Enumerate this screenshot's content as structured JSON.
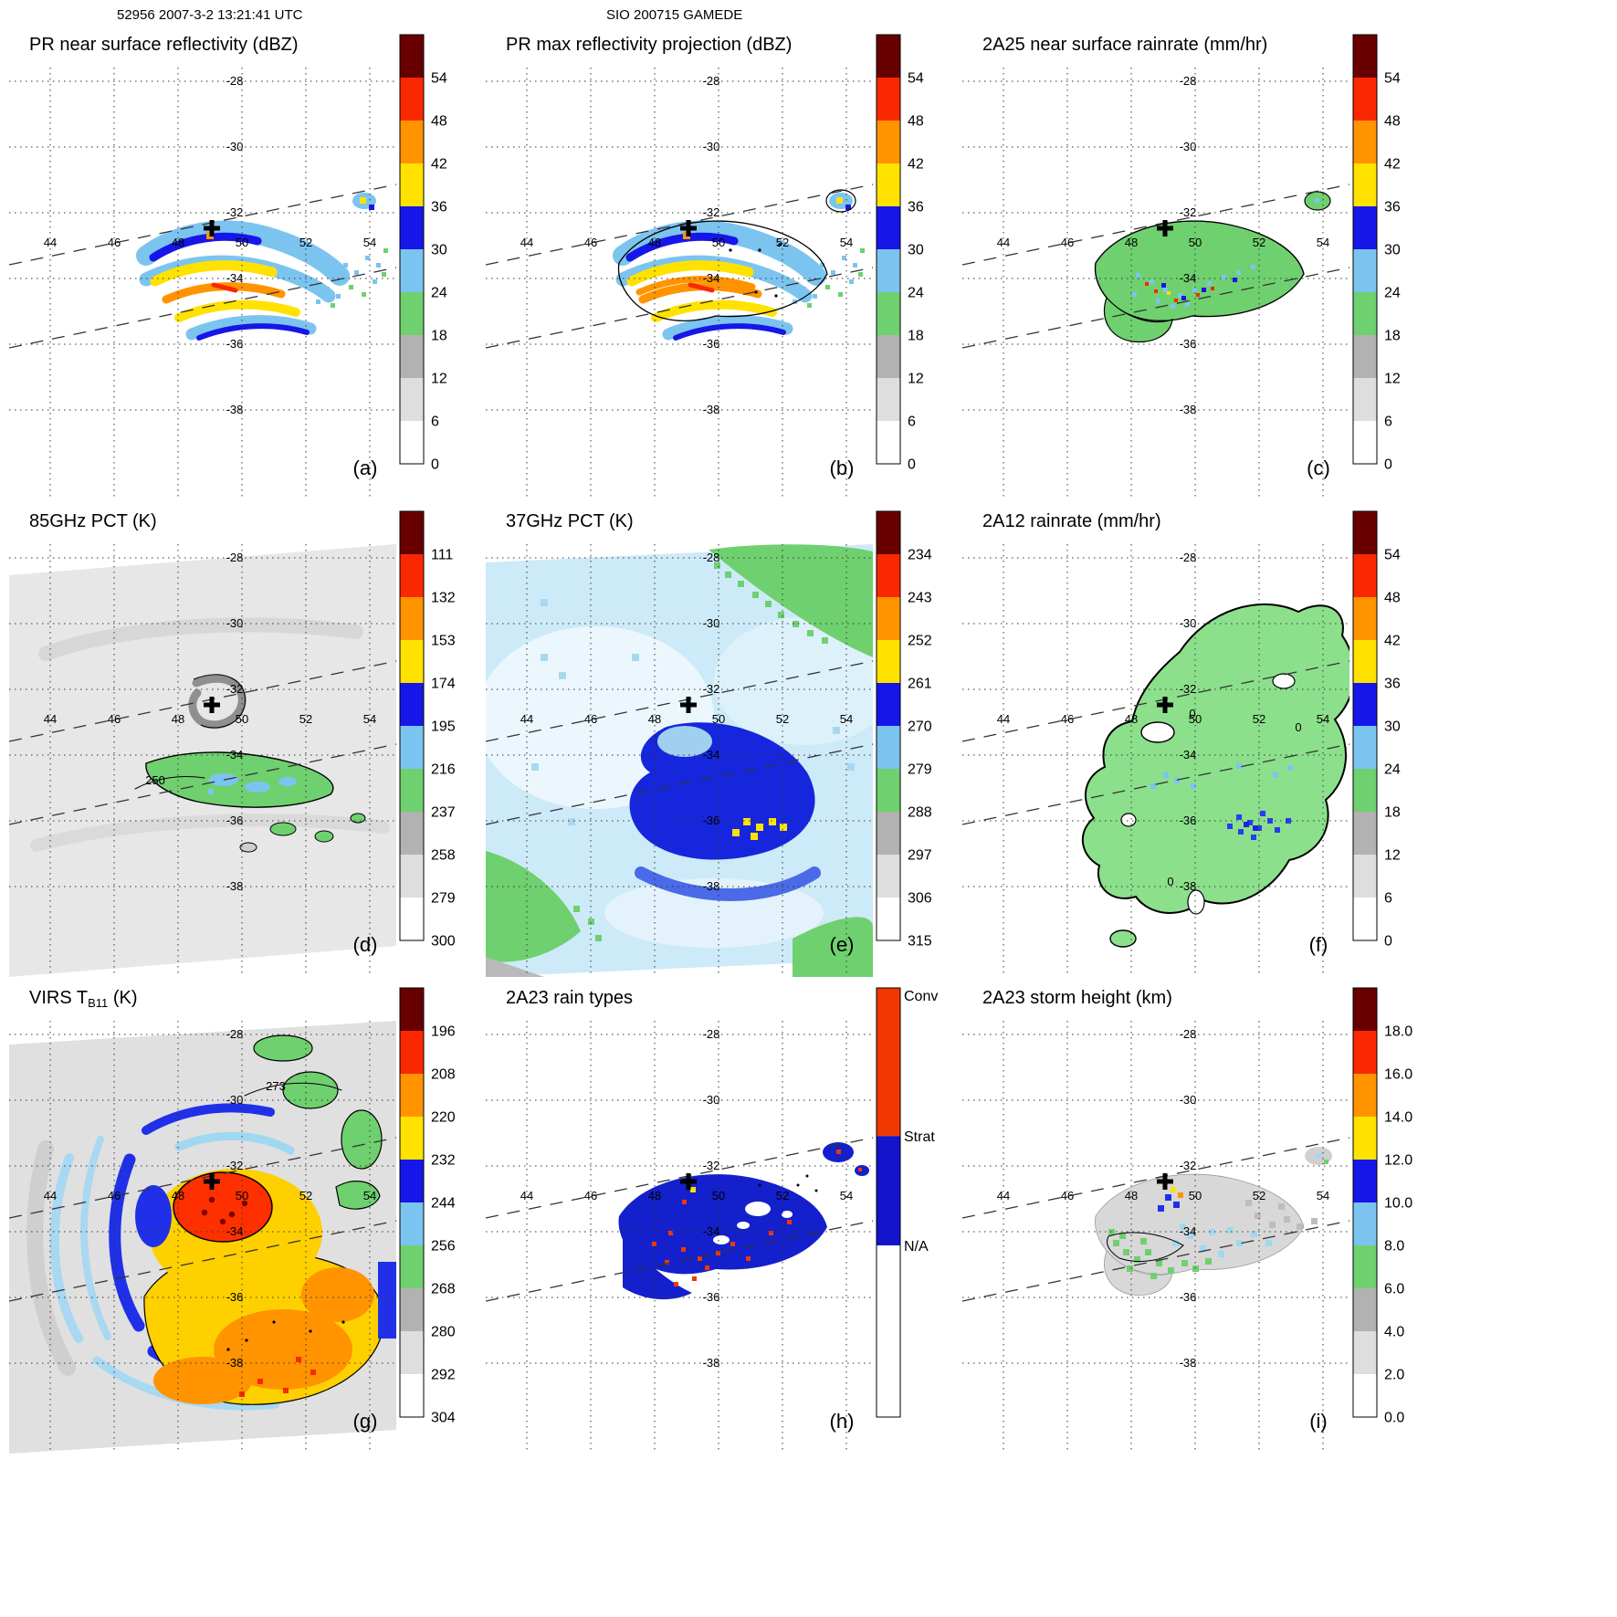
{
  "header": {
    "left": "52956 2007-3-2 13:21:41 UTC",
    "center": "SIO 200715 GAMEDE"
  },
  "geo": {
    "lon_labels": [
      "44",
      "46",
      "48",
      "50",
      "52",
      "54"
    ],
    "lat_labels": [
      "-28",
      "-30",
      "-32",
      "-34",
      "-36",
      "-38"
    ]
  },
  "palette": {
    "bar_colors": [
      "#ffffff",
      "#dedede",
      "#b2b2b2",
      "#6fd06f",
      "#7cc4f0",
      "#1616e8",
      "#ffe200",
      "#ff9400",
      "#fa2800",
      "#680000"
    ],
    "green": "#6fd06f",
    "green_bright": "#8ce08c",
    "lblue": "#7cc4f0",
    "blue": "#1616e8",
    "deep_blue": "#1420cc",
    "yellow": "#ffe200",
    "gold": "#ffd000",
    "orange": "#ff9400",
    "red": "#fa2800",
    "maroon": "#680000",
    "raintype_conv": "#f03800",
    "raintype_strat": "#1414cc",
    "swath_bg_gray": "#e7e7e7",
    "pct37_bg": "#cdeaf8"
  },
  "panels": [
    {
      "id": "a",
      "letter": "(a)",
      "title_pre": "PR near surface reflectivity (dBZ)",
      "title_sub": "",
      "title_post": "",
      "art": "a",
      "colorbar": {
        "type": "standard",
        "ticks": [
          "0",
          "6",
          "12",
          "18",
          "24",
          "30",
          "36",
          "42",
          "48",
          "54"
        ]
      },
      "notes": []
    },
    {
      "id": "b",
      "letter": "(b)",
      "title_pre": "PR max reflectivity projection (dBZ)",
      "title_sub": "",
      "title_post": "",
      "art": "b",
      "colorbar": {
        "type": "standard",
        "ticks": [
          "0",
          "6",
          "12",
          "18",
          "24",
          "30",
          "36",
          "42",
          "48",
          "54"
        ]
      },
      "notes": []
    },
    {
      "id": "c",
      "letter": "(c)",
      "title_pre": "2A25 near surface rainrate (mm/hr)",
      "title_sub": "",
      "title_post": "",
      "art": "c",
      "colorbar": {
        "type": "standard",
        "ticks": [
          "0",
          "6",
          "12",
          "18",
          "24",
          "30",
          "36",
          "42",
          "48",
          "54"
        ]
      },
      "notes": []
    },
    {
      "id": "d",
      "letter": "(d)",
      "title_pre": "85GHz PCT (K)",
      "title_sub": "",
      "title_post": "",
      "art": "d",
      "colorbar": {
        "type": "standard",
        "ticks": [
          "300",
          "279",
          "258",
          "237",
          "216",
          "195",
          "174",
          "153",
          "132",
          "111"
        ]
      },
      "notes": [
        "250"
      ]
    },
    {
      "id": "e",
      "letter": "(e)",
      "title_pre": "37GHz PCT (K)",
      "title_sub": "",
      "title_post": "",
      "art": "e",
      "colorbar": {
        "type": "standard",
        "ticks": [
          "315",
          "306",
          "297",
          "288",
          "279",
          "270",
          "261",
          "252",
          "243",
          "234"
        ]
      },
      "notes": []
    },
    {
      "id": "f",
      "letter": "(f)",
      "title_pre": "2A12 rainrate (mm/hr)",
      "title_sub": "",
      "title_post": "",
      "art": "f",
      "colorbar": {
        "type": "standard",
        "ticks": [
          "0",
          "6",
          "12",
          "18",
          "24",
          "30",
          "36",
          "42",
          "48",
          "54"
        ]
      },
      "notes": [
        "0",
        "0",
        "0"
      ]
    },
    {
      "id": "g",
      "letter": "(g)",
      "title_pre": "VIRS T",
      "title_sub": "B11",
      "title_post": " (K)",
      "art": "g",
      "colorbar": {
        "type": "standard",
        "ticks": [
          "304",
          "292",
          "280",
          "268",
          "256",
          "244",
          "232",
          "220",
          "208",
          "196"
        ]
      },
      "notes": [
        "273"
      ]
    },
    {
      "id": "h",
      "letter": "(h)",
      "title_pre": "2A23 rain types",
      "title_sub": "",
      "title_post": "",
      "art": "h",
      "colorbar": {
        "type": "raintypes",
        "labels": [
          "Conv",
          "Strat",
          "N/A"
        ]
      },
      "notes": []
    },
    {
      "id": "i",
      "letter": "(i)",
      "title_pre": "2A23 storm height (km)",
      "title_sub": "",
      "title_post": "",
      "art": "i",
      "colorbar": {
        "type": "standard",
        "ticks": [
          "0.0",
          "2.0",
          "4.0",
          "6.0",
          "8.0",
          "10.0",
          "12.0",
          "14.0",
          "16.0",
          "18.0"
        ]
      },
      "notes": []
    }
  ],
  "chart_data": [
    {
      "panel": "a",
      "type": "heatmap",
      "title": "PR near surface reflectivity (dBZ)",
      "units": "dBZ",
      "colorbar_ticks": [
        0,
        6,
        12,
        18,
        24,
        30,
        36,
        42,
        48,
        54
      ],
      "lon_ticks": [
        44,
        46,
        48,
        50,
        52,
        54
      ],
      "lat_ticks": [
        -28,
        -30,
        -32,
        -34,
        -36,
        -38
      ],
      "storm_center": {
        "lon": 48.8,
        "lat": -32.2
      }
    },
    {
      "panel": "b",
      "type": "heatmap",
      "title": "PR max reflectivity projection (dBZ)",
      "units": "dBZ",
      "colorbar_ticks": [
        0,
        6,
        12,
        18,
        24,
        30,
        36,
        42,
        48,
        54
      ],
      "lon_ticks": [
        44,
        46,
        48,
        50,
        52,
        54
      ],
      "lat_ticks": [
        -28,
        -30,
        -32,
        -34,
        -36,
        -38
      ],
      "storm_center": {
        "lon": 48.8,
        "lat": -32.2
      }
    },
    {
      "panel": "c",
      "type": "heatmap",
      "title": "2A25 near surface rainrate (mm/hr)",
      "units": "mm/hr",
      "colorbar_ticks": [
        0,
        6,
        12,
        18,
        24,
        30,
        36,
        42,
        48,
        54
      ],
      "lon_ticks": [
        44,
        46,
        48,
        50,
        52,
        54
      ],
      "lat_ticks": [
        -28,
        -30,
        -32,
        -34,
        -36,
        -38
      ],
      "storm_center": {
        "lon": 48.8,
        "lat": -32.2
      }
    },
    {
      "panel": "d",
      "type": "heatmap",
      "title": "85GHz PCT (K)",
      "units": "K",
      "colorbar_ticks": [
        111,
        132,
        153,
        174,
        195,
        216,
        237,
        258,
        279,
        300
      ],
      "contour_label": 250,
      "lon_ticks": [
        44,
        46,
        48,
        50,
        52,
        54
      ],
      "lat_ticks": [
        -28,
        -30,
        -32,
        -34,
        -36,
        -38
      ],
      "storm_center": {
        "lon": 48.8,
        "lat": -32.2
      }
    },
    {
      "panel": "e",
      "type": "heatmap",
      "title": "37GHz PCT (K)",
      "units": "K",
      "colorbar_ticks": [
        234,
        243,
        252,
        261,
        270,
        279,
        288,
        297,
        306,
        315
      ],
      "lon_ticks": [
        44,
        46,
        48,
        50,
        52,
        54
      ],
      "lat_ticks": [
        -28,
        -30,
        -32,
        -34,
        -36,
        -38
      ],
      "storm_center": {
        "lon": 48.8,
        "lat": -32.2
      }
    },
    {
      "panel": "f",
      "type": "heatmap",
      "title": "2A12 rainrate (mm/hr)",
      "units": "mm/hr",
      "colorbar_ticks": [
        0,
        6,
        12,
        18,
        24,
        30,
        36,
        42,
        48,
        54
      ],
      "contour_label": 0,
      "lon_ticks": [
        44,
        46,
        48,
        50,
        52,
        54
      ],
      "lat_ticks": [
        -28,
        -30,
        -32,
        -34,
        -36,
        -38
      ],
      "storm_center": {
        "lon": 48.8,
        "lat": -32.2
      }
    },
    {
      "panel": "g",
      "type": "heatmap",
      "title": "VIRS TB11 (K)",
      "units": "K",
      "colorbar_ticks": [
        196,
        208,
        220,
        232,
        244,
        256,
        268,
        280,
        292,
        304
      ],
      "contour_label": 273,
      "lon_ticks": [
        44,
        46,
        48,
        50,
        52,
        54
      ],
      "lat_ticks": [
        -28,
        -30,
        -32,
        -34,
        -36,
        -38
      ],
      "storm_center": {
        "lon": 48.8,
        "lat": -32.2
      }
    },
    {
      "panel": "h",
      "type": "heatmap",
      "title": "2A23 rain types",
      "categories": [
        "Conv",
        "Strat",
        "N/A"
      ],
      "lon_ticks": [
        44,
        46,
        48,
        50,
        52,
        54
      ],
      "lat_ticks": [
        -28,
        -30,
        -32,
        -34,
        -36,
        -38
      ],
      "storm_center": {
        "lon": 48.8,
        "lat": -32.2
      }
    },
    {
      "panel": "i",
      "type": "heatmap",
      "title": "2A23 storm height (km)",
      "units": "km",
      "colorbar_ticks": [
        0.0,
        2.0,
        4.0,
        6.0,
        8.0,
        10.0,
        12.0,
        14.0,
        16.0,
        18.0
      ],
      "lon_ticks": [
        44,
        46,
        48,
        50,
        52,
        54
      ],
      "lat_ticks": [
        -28,
        -30,
        -32,
        -34,
        -36,
        -38
      ],
      "storm_center": {
        "lon": 48.8,
        "lat": -32.2
      }
    }
  ]
}
